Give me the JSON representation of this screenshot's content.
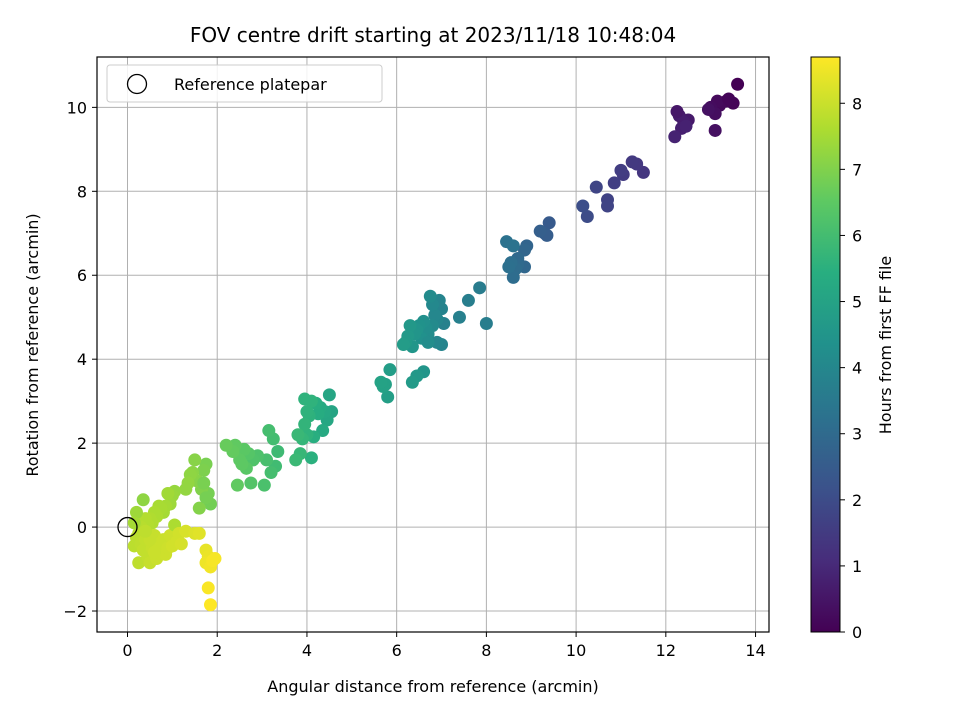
{
  "chart_data": {
    "type": "scatter",
    "title": "FOV centre drift starting at 2023/11/18 10:48:04",
    "xlabel": "Angular distance from reference (arcmin)",
    "ylabel": "Rotation from reference (arcmin)",
    "xlim": [
      -0.68,
      14.3
    ],
    "ylim": [
      -2.5,
      11.2
    ],
    "xticks": [
      "0",
      "2",
      "4",
      "6",
      "8",
      "10",
      "12",
      "14"
    ],
    "yticks": [
      "−2",
      "0",
      "2",
      "4",
      "6",
      "8",
      "10"
    ],
    "xtick_values": [
      0,
      2,
      4,
      6,
      8,
      10,
      12,
      14
    ],
    "ytick_values": [
      -2,
      0,
      2,
      4,
      6,
      8,
      10
    ],
    "grid": true,
    "legend": {
      "placement": "top-left",
      "entries": [
        {
          "label": "Reference platepar",
          "marker": "open-circle"
        }
      ]
    },
    "reference_point": {
      "x": 0,
      "y": 0
    },
    "colorbar": {
      "label": "Hours from first FF file",
      "colormap": "viridis",
      "range": [
        0,
        8.7
      ],
      "ticks": [
        "0",
        "1",
        "2",
        "3",
        "4",
        "5",
        "6",
        "7",
        "8"
      ],
      "tick_values": [
        0,
        1,
        2,
        3,
        4,
        5,
        6,
        7,
        8
      ]
    },
    "points": [
      [
        13.6,
        10.55,
        0.0
      ],
      [
        13.5,
        10.1,
        0.08
      ],
      [
        13.35,
        10.15,
        0.12
      ],
      [
        13.2,
        10.05,
        0.18
      ],
      [
        13.15,
        10.15,
        0.22
      ],
      [
        13.0,
        10.0,
        0.28
      ],
      [
        13.1,
        9.85,
        0.32
      ],
      [
        13.1,
        9.45,
        0.36
      ],
      [
        13.4,
        10.2,
        0.1
      ],
      [
        12.95,
        9.95,
        0.4
      ],
      [
        12.5,
        9.7,
        0.6
      ],
      [
        12.3,
        9.8,
        0.65
      ],
      [
        12.4,
        9.65,
        0.7
      ],
      [
        12.25,
        9.9,
        0.55
      ],
      [
        12.35,
        9.5,
        0.75
      ],
      [
        12.2,
        9.3,
        0.85
      ],
      [
        12.45,
        9.55,
        0.8
      ],
      [
        11.5,
        8.45,
        1.35
      ],
      [
        11.35,
        8.65,
        1.4
      ],
      [
        11.25,
        8.7,
        1.45
      ],
      [
        11.05,
        8.4,
        1.5
      ],
      [
        11.0,
        8.5,
        1.55
      ],
      [
        10.85,
        8.2,
        1.6
      ],
      [
        10.7,
        7.8,
        1.7
      ],
      [
        10.7,
        7.65,
        1.75
      ],
      [
        10.45,
        8.1,
        1.8
      ],
      [
        10.25,
        7.4,
        2.0
      ],
      [
        10.15,
        7.65,
        2.05
      ],
      [
        9.4,
        7.25,
        2.45
      ],
      [
        9.3,
        7.0,
        2.5
      ],
      [
        9.35,
        6.95,
        2.55
      ],
      [
        9.2,
        7.05,
        2.6
      ],
      [
        8.9,
        6.7,
        2.8
      ],
      [
        8.85,
        6.6,
        2.85
      ],
      [
        8.85,
        6.2,
        2.9
      ],
      [
        8.7,
        6.4,
        2.95
      ],
      [
        8.7,
        6.25,
        3.0
      ],
      [
        8.65,
        6.15,
        3.05
      ],
      [
        8.6,
        5.95,
        3.1
      ],
      [
        8.55,
        6.3,
        3.15
      ],
      [
        8.5,
        6.2,
        3.2
      ],
      [
        8.45,
        6.8,
        3.25
      ],
      [
        8.6,
        6.7,
        3.3
      ],
      [
        7.85,
        5.7,
        3.6
      ],
      [
        8.0,
        4.85,
        3.65
      ],
      [
        7.6,
        5.4,
        3.7
      ],
      [
        7.4,
        5.0,
        3.75
      ],
      [
        7.05,
        4.85,
        3.8
      ],
      [
        7.0,
        5.2,
        3.85
      ],
      [
        6.95,
        5.4,
        3.9
      ],
      [
        6.9,
        4.95,
        3.95
      ],
      [
        6.85,
        5.05,
        4.0
      ],
      [
        6.8,
        5.3,
        4.05
      ],
      [
        6.8,
        4.8,
        4.1
      ],
      [
        6.75,
        5.5,
        4.15
      ],
      [
        6.7,
        4.6,
        4.2
      ],
      [
        6.65,
        4.75,
        4.25
      ],
      [
        6.6,
        4.9,
        4.3
      ],
      [
        6.55,
        4.5,
        4.35
      ],
      [
        6.5,
        4.8,
        4.4
      ],
      [
        6.45,
        4.7,
        4.45
      ],
      [
        6.4,
        4.6,
        4.5
      ],
      [
        6.35,
        4.3,
        4.55
      ],
      [
        6.3,
        4.8,
        4.6
      ],
      [
        6.25,
        4.55,
        4.65
      ],
      [
        6.2,
        4.4,
        4.7
      ],
      [
        6.15,
        4.35,
        4.75
      ],
      [
        7.0,
        4.35,
        3.9
      ],
      [
        6.9,
        4.4,
        3.95
      ],
      [
        6.7,
        4.4,
        4.2
      ],
      [
        6.6,
        3.7,
        4.5
      ],
      [
        6.45,
        3.6,
        4.6
      ],
      [
        6.35,
        3.45,
        4.7
      ],
      [
        5.85,
        3.75,
        4.8
      ],
      [
        5.8,
        3.1,
        4.85
      ],
      [
        5.75,
        3.4,
        4.9
      ],
      [
        5.7,
        3.35,
        4.95
      ],
      [
        5.65,
        3.45,
        5.0
      ],
      [
        4.55,
        2.75,
        5.05
      ],
      [
        4.5,
        3.15,
        5.1
      ],
      [
        4.45,
        2.55,
        5.15
      ],
      [
        4.4,
        2.75,
        5.2
      ],
      [
        4.35,
        2.3,
        5.25
      ],
      [
        4.3,
        2.85,
        5.3
      ],
      [
        4.25,
        2.7,
        5.35
      ],
      [
        4.2,
        2.95,
        5.4
      ],
      [
        4.15,
        2.15,
        5.45
      ],
      [
        4.1,
        1.65,
        5.5
      ],
      [
        4.05,
        2.65,
        5.55
      ],
      [
        4.0,
        2.2,
        5.6
      ],
      [
        3.95,
        3.05,
        5.6
      ],
      [
        4.1,
        3.0,
        5.6
      ],
      [
        4.0,
        2.75,
        5.6
      ],
      [
        3.95,
        2.45,
        5.65
      ],
      [
        3.9,
        2.1,
        5.7
      ],
      [
        3.85,
        1.75,
        5.75
      ],
      [
        3.8,
        2.2,
        5.8
      ],
      [
        3.75,
        1.6,
        5.85
      ],
      [
        3.35,
        1.8,
        5.9
      ],
      [
        3.3,
        1.45,
        5.95
      ],
      [
        3.25,
        2.1,
        6.0
      ],
      [
        3.2,
        1.3,
        6.05
      ],
      [
        3.15,
        2.3,
        6.05
      ],
      [
        3.1,
        1.6,
        6.1
      ],
      [
        3.05,
        1.0,
        6.15
      ],
      [
        2.9,
        1.7,
        6.2
      ],
      [
        2.8,
        1.6,
        6.25
      ],
      [
        2.75,
        1.05,
        6.3
      ],
      [
        2.7,
        1.75,
        6.35
      ],
      [
        2.65,
        1.4,
        6.4
      ],
      [
        2.6,
        1.85,
        6.45
      ],
      [
        2.55,
        1.5,
        6.5
      ],
      [
        2.5,
        1.6,
        6.5
      ],
      [
        2.45,
        1.0,
        6.55
      ],
      [
        2.4,
        1.95,
        6.55
      ],
      [
        2.35,
        1.8,
        6.6
      ],
      [
        2.2,
        1.95,
        6.65
      ],
      [
        1.85,
        0.55,
        6.8
      ],
      [
        1.8,
        0.8,
        6.85
      ],
      [
        1.75,
        1.5,
        6.9
      ],
      [
        1.7,
        1.35,
        6.95
      ],
      [
        1.65,
        0.9,
        7.0
      ],
      [
        1.6,
        0.45,
        7.05
      ],
      [
        1.55,
        1.1,
        7.1
      ],
      [
        1.5,
        1.6,
        7.1
      ],
      [
        1.45,
        1.3,
        7.15
      ],
      [
        1.4,
        1.25,
        7.2
      ],
      [
        1.35,
        1.05,
        7.25
      ],
      [
        1.3,
        0.9,
        7.25
      ],
      [
        1.7,
        1.05,
        6.9
      ],
      [
        1.75,
        0.7,
        6.85
      ],
      [
        1.05,
        0.85,
        7.3
      ],
      [
        1.0,
        0.75,
        7.35
      ],
      [
        0.95,
        0.55,
        7.4
      ],
      [
        0.9,
        0.8,
        7.45
      ],
      [
        0.85,
        0.5,
        7.5
      ],
      [
        0.8,
        0.35,
        7.5
      ],
      [
        0.75,
        0.45,
        7.55
      ],
      [
        0.7,
        0.5,
        7.55
      ],
      [
        0.65,
        0.25,
        7.6
      ],
      [
        0.6,
        0.35,
        7.6
      ],
      [
        0.55,
        0.1,
        7.65
      ],
      [
        0.5,
        0.2,
        7.65
      ],
      [
        0.45,
        0.05,
        7.7
      ],
      [
        0.4,
        0.2,
        7.7
      ],
      [
        0.35,
        0.65,
        7.2
      ],
      [
        0.3,
        0.0,
        7.75
      ],
      [
        0.25,
        -0.15,
        7.75
      ],
      [
        0.2,
        0.35,
        7.4
      ],
      [
        0.15,
        0.1,
        7.5
      ],
      [
        0.15,
        -0.45,
        7.8
      ],
      [
        0.2,
        -0.25,
        7.8
      ],
      [
        0.25,
        -0.85,
        7.85
      ],
      [
        0.3,
        -0.4,
        7.85
      ],
      [
        0.35,
        -0.55,
        7.9
      ],
      [
        0.4,
        -0.3,
        7.9
      ],
      [
        0.45,
        -0.7,
        7.9
      ],
      [
        0.5,
        -0.85,
        7.95
      ],
      [
        0.55,
        -0.5,
        7.95
      ],
      [
        0.6,
        -0.2,
        7.95
      ],
      [
        0.65,
        -0.75,
        8.0
      ],
      [
        0.7,
        -0.4,
        8.0
      ],
      [
        0.75,
        -0.55,
        8.0
      ],
      [
        0.8,
        -0.3,
        8.0
      ],
      [
        0.85,
        -0.65,
        8.05
      ],
      [
        0.9,
        -0.5,
        8.05
      ],
      [
        0.95,
        -0.2,
        8.05
      ],
      [
        1.0,
        -0.45,
        8.1
      ],
      [
        1.05,
        0.05,
        7.6
      ],
      [
        1.1,
        -0.35,
        8.1
      ],
      [
        1.15,
        -0.15,
        8.1
      ],
      [
        1.2,
        -0.4,
        8.15
      ],
      [
        1.3,
        -0.1,
        8.2
      ],
      [
        1.5,
        -0.15,
        8.25
      ],
      [
        1.6,
        -0.15,
        8.3
      ],
      [
        0.5,
        -0.3,
        7.95
      ],
      [
        0.6,
        -0.6,
        8.0
      ],
      [
        0.4,
        -0.1,
        7.85
      ],
      [
        1.75,
        -0.55,
        8.4
      ],
      [
        1.8,
        -0.7,
        8.45
      ],
      [
        1.75,
        -0.85,
        8.5
      ],
      [
        1.85,
        -0.95,
        8.55
      ],
      [
        1.9,
        -0.8,
        8.6
      ],
      [
        1.95,
        -0.75,
        8.6
      ],
      [
        1.8,
        -1.45,
        8.65
      ],
      [
        1.85,
        -1.85,
        8.7
      ]
    ]
  }
}
